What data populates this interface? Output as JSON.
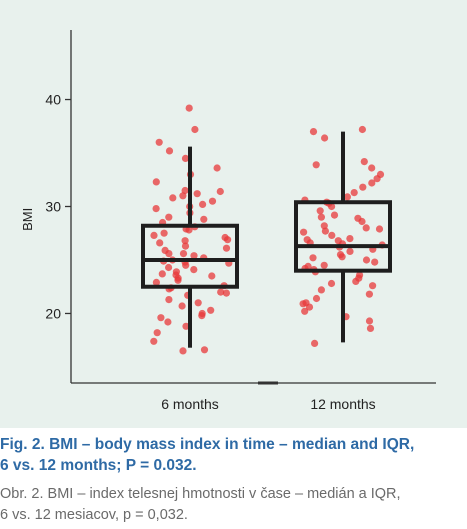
{
  "figure": {
    "caption_en_line1": "Fig. 2. BMI – body mass index in time – median and IQR,",
    "caption_en_line2": "6 vs. 12 months; P = 0.032.",
    "caption_sk_line1": "Obr. 2. BMI – index telesnej hmotnosti v čase – medián a IQR,",
    "caption_sk_line2": "6 vs. 12 mesiacov, p = 0,032."
  },
  "chart_data": {
    "type": "box",
    "ylabel": "BMI",
    "xlabel": "",
    "ylim": [
      13.5,
      46.5
    ],
    "yticks": [
      20,
      30,
      40
    ],
    "categories": [
      "6 months",
      "12 months"
    ],
    "grid": false,
    "legend": "none",
    "colors": {
      "points": "#e8383a",
      "box": "#1e1e1e",
      "background": "#e8f1ed",
      "caption_en": "#2e6aa5",
      "caption_sk": "#6a6a6a"
    },
    "boxes": [
      {
        "category": "6 months",
        "whisker_low": 16.8,
        "q1": 22.5,
        "median": 25.0,
        "q3": 28.2,
        "whisker_high": 35.6,
        "points": [
          39.2,
          37.2,
          36.0,
          35.2,
          34.5,
          33.0,
          32.3,
          31.4,
          31.2,
          31.0,
          30.8,
          30.5,
          30.2,
          29.8,
          29.4,
          29.0,
          28.8,
          28.5,
          28.1,
          27.8,
          27.5,
          27.3,
          27.1,
          26.9,
          26.6,
          26.3,
          26.1,
          25.9,
          25.6,
          25.4,
          25.2,
          25.0,
          24.9,
          24.7,
          24.5,
          24.3,
          24.1,
          23.9,
          23.7,
          23.5,
          23.3,
          23.1,
          22.9,
          22.6,
          22.3,
          22.0,
          21.7,
          21.3,
          21.0,
          20.7,
          20.3,
          20.0,
          19.6,
          19.2,
          18.8,
          18.2,
          17.4,
          16.5,
          16.6,
          19.8,
          21.9,
          23.6,
          26.8,
          30.0,
          31.5,
          33.6,
          27.9,
          24.8,
          22.4,
          25.6
        ]
      },
      {
        "category": "12 months",
        "whisker_low": 17.3,
        "q1": 24.0,
        "median": 26.3,
        "q3": 30.4,
        "whisker_high": 37.0,
        "points": [
          37.2,
          37.0,
          36.4,
          34.2,
          33.6,
          33.0,
          32.6,
          32.2,
          31.8,
          31.3,
          30.9,
          30.6,
          30.3,
          30.0,
          29.6,
          29.2,
          28.9,
          28.6,
          28.2,
          27.9,
          27.6,
          27.3,
          27.0,
          26.8,
          26.6,
          26.4,
          26.2,
          26.0,
          25.8,
          25.5,
          25.2,
          25.0,
          24.8,
          24.5,
          24.2,
          23.9,
          23.6,
          23.3,
          23.0,
          22.6,
          22.2,
          21.8,
          21.4,
          21.0,
          20.6,
          20.2,
          19.7,
          19.3,
          18.6,
          17.2,
          26.5,
          26.9,
          27.7,
          25.3,
          24.4,
          22.8,
          29.0,
          30.4,
          28.0,
          24.1,
          33.9,
          20.9
        ]
      }
    ]
  }
}
